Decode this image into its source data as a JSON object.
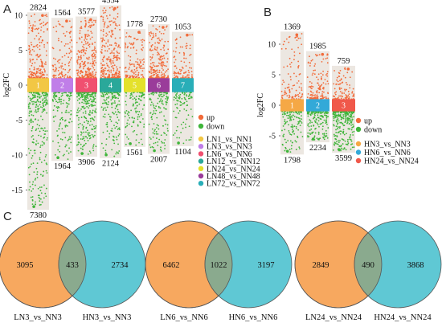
{
  "panel_letters": [
    "A",
    "B",
    "C"
  ],
  "colors": {
    "up": "#f26b3a",
    "down": "#3fb53a",
    "column_bg": "#ece7e1",
    "venn_left": "#f7a85f",
    "venn_right": "#5fc8d4",
    "venn_overlap": "#8aaa8e"
  },
  "chart_data": [
    {
      "type": "scatter",
      "panel": "A",
      "ylabel": "log2FC",
      "ylim": [
        -19,
        13
      ],
      "yticks": [
        -15,
        -10,
        -5,
        0,
        5,
        10
      ],
      "legend": {
        "position": "right",
        "items": [
          "up",
          "down"
        ]
      },
      "comparisons": [
        {
          "cluster": "1",
          "name": "LN1_vs_NN1",
          "up": 2824,
          "down": 7380,
          "max": 10.2,
          "min": -17.6,
          "color": "#f2c744"
        },
        {
          "cluster": "2",
          "name": "LN3_vs_NN3",
          "up": 1564,
          "down": 1964,
          "max": 9.4,
          "min": -10.6,
          "color": "#c07ee8"
        },
        {
          "cluster": "3",
          "name": "LN6_vs_NN6",
          "up": 3577,
          "down": 3906,
          "max": 9.6,
          "min": -10.0,
          "color": "#f05070"
        },
        {
          "cluster": "4",
          "name": "LN12_vs_NN12",
          "up": 4554,
          "down": 2124,
          "max": 11.2,
          "min": -10.2,
          "color": "#2aa89a"
        },
        {
          "cluster": "5",
          "name": "LN24_vs_NN24",
          "up": 1778,
          "down": 1561,
          "max": 7.8,
          "min": -8.6,
          "color": "#e4e12c"
        },
        {
          "cluster": "6",
          "name": "LN48_vs_NN48",
          "up": 2730,
          "down": 2007,
          "max": 8.5,
          "min": -9.6,
          "color": "#9a3c9a"
        },
        {
          "cluster": "7",
          "name": "LN72_vs_NN72",
          "up": 1053,
          "down": 1104,
          "max": 7.4,
          "min": -8.5,
          "color": "#29aeb8"
        }
      ]
    },
    {
      "type": "scatter",
      "panel": "B",
      "ylabel": "log2FC",
      "ylim": [
        -8.5,
        12.5
      ],
      "yticks": [
        -5,
        0,
        5,
        10
      ],
      "legend": {
        "position": "right",
        "items": [
          "up",
          "down"
        ]
      },
      "comparisons": [
        {
          "cluster": "1",
          "name": "HN3_vs_NN3",
          "up": 1369,
          "down": 1798,
          "max": 11.8,
          "min": -7.8,
          "color": "#f5a845"
        },
        {
          "cluster": "2",
          "name": "HN6_vs_NN6",
          "up": 1985,
          "down": 2234,
          "max": 8.6,
          "min": -5.8,
          "color": "#33a9d8"
        },
        {
          "cluster": "3",
          "name": "HN24_vs_NN24",
          "up": 759,
          "down": 3599,
          "max": 6.2,
          "min": -7.5,
          "color": "#f0584a"
        }
      ]
    },
    {
      "type": "venn",
      "panel": "C",
      "diagrams": [
        {
          "left_label": "LN3_vs_NN3",
          "right_label": "HN3_vs_NN3",
          "left_only": 3095,
          "overlap": 433,
          "right_only": 2734
        },
        {
          "left_label": "LN6_vs_NN6",
          "right_label": "HN6_vs_NN6",
          "left_only": 6462,
          "overlap": 1022,
          "right_only": 3197
        },
        {
          "left_label": "LN24_vs_NN24",
          "right_label": "HN24_vs_NN24",
          "left_only": 2849,
          "overlap": 490,
          "right_only": 3868
        }
      ]
    }
  ]
}
